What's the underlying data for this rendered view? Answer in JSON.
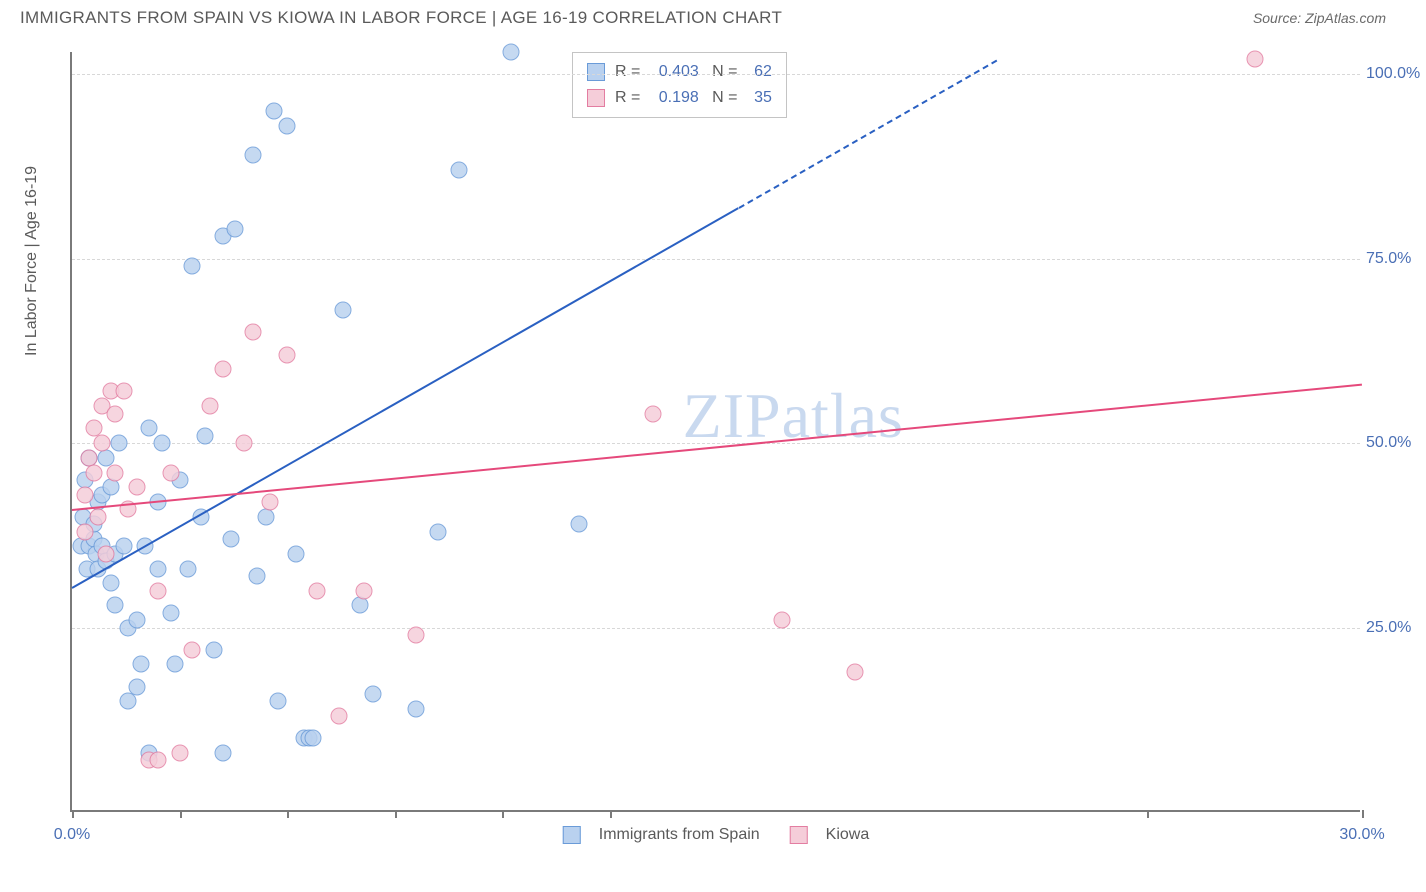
{
  "title": "IMMIGRANTS FROM SPAIN VS KIOWA IN LABOR FORCE | AGE 16-19 CORRELATION CHART",
  "source_label": "Source: ZipAtlas.com",
  "y_axis_label": "In Labor Force | Age 16-19",
  "watermark": {
    "zip": "ZIP",
    "atlas": "atlas"
  },
  "chart": {
    "type": "scatter",
    "xlim": [
      0,
      30
    ],
    "ylim": [
      0,
      103
    ],
    "x_ticks": [
      0,
      2.5,
      5,
      7.5,
      10,
      12.5,
      25,
      30
    ],
    "x_tick_labels": {
      "0": "0.0%",
      "30": "30.0%"
    },
    "y_gridlines": [
      25,
      50,
      75,
      100
    ],
    "y_tick_labels": {
      "25": "25.0%",
      "50": "50.0%",
      "75": "75.0%",
      "100": "100.0%"
    },
    "background_color": "#ffffff",
    "grid_color": "#d8d8d8",
    "axis_color": "#7a7a7a",
    "tick_label_color": "#4a6fb5"
  },
  "series": [
    {
      "name": "Immigrants from Spain",
      "color_fill": "#b9d1ef",
      "color_stroke": "#6a9bd8",
      "marker_radius": 8.5,
      "trend": {
        "color": "#2a60c2",
        "width": 2.5,
        "x0": 0,
        "y0": 30.5,
        "x1": 15.5,
        "y1": 82,
        "dash_x1": 21.5,
        "dash_y1": 102
      },
      "stats": {
        "R": "0.403",
        "N": "62"
      },
      "points": [
        [
          0.2,
          36
        ],
        [
          0.25,
          40
        ],
        [
          0.3,
          45
        ],
        [
          0.35,
          33
        ],
        [
          0.4,
          48
        ],
        [
          0.4,
          36
        ],
        [
          0.5,
          37
        ],
        [
          0.5,
          39
        ],
        [
          0.55,
          35
        ],
        [
          0.6,
          42
        ],
        [
          0.6,
          33
        ],
        [
          0.7,
          43
        ],
        [
          0.7,
          36
        ],
        [
          0.8,
          34
        ],
        [
          0.8,
          48
        ],
        [
          0.9,
          31
        ],
        [
          0.9,
          44
        ],
        [
          1.0,
          35
        ],
        [
          1.0,
          28
        ],
        [
          1.1,
          50
        ],
        [
          1.2,
          36
        ],
        [
          1.3,
          15
        ],
        [
          1.3,
          25
        ],
        [
          1.5,
          17
        ],
        [
          1.5,
          26
        ],
        [
          1.6,
          20
        ],
        [
          1.7,
          36
        ],
        [
          1.8,
          52
        ],
        [
          1.8,
          8
        ],
        [
          2.0,
          33
        ],
        [
          2.0,
          42
        ],
        [
          2.1,
          50
        ],
        [
          2.3,
          27
        ],
        [
          2.4,
          20
        ],
        [
          2.5,
          45
        ],
        [
          2.7,
          33
        ],
        [
          2.8,
          74
        ],
        [
          3.0,
          40
        ],
        [
          3.1,
          51
        ],
        [
          3.3,
          22
        ],
        [
          3.5,
          8
        ],
        [
          3.5,
          78
        ],
        [
          3.7,
          37
        ],
        [
          3.8,
          79
        ],
        [
          4.2,
          89
        ],
        [
          4.3,
          32
        ],
        [
          4.5,
          40
        ],
        [
          4.7,
          95
        ],
        [
          4.8,
          15
        ],
        [
          5.0,
          93
        ],
        [
          5.2,
          35
        ],
        [
          5.4,
          10
        ],
        [
          5.5,
          10
        ],
        [
          5.6,
          10
        ],
        [
          6.3,
          68
        ],
        [
          6.7,
          28
        ],
        [
          7.0,
          16
        ],
        [
          8.0,
          14
        ],
        [
          8.5,
          38
        ],
        [
          9.0,
          87
        ],
        [
          10.2,
          103
        ],
        [
          11.8,
          39
        ]
      ]
    },
    {
      "name": "Kiowa",
      "color_fill": "#f5cdd9",
      "color_stroke": "#e37da1",
      "marker_radius": 8.5,
      "trend": {
        "color": "#e5497b",
        "width": 2.5,
        "x0": 0,
        "y0": 41,
        "x1": 30,
        "y1": 58
      },
      "stats": {
        "R": "0.198",
        "N": "35"
      },
      "points": [
        [
          0.3,
          43
        ],
        [
          0.3,
          38
        ],
        [
          0.4,
          48
        ],
        [
          0.5,
          46
        ],
        [
          0.5,
          52
        ],
        [
          0.6,
          40
        ],
        [
          0.7,
          55
        ],
        [
          0.7,
          50
        ],
        [
          0.8,
          35
        ],
        [
          0.9,
          57
        ],
        [
          1.0,
          54
        ],
        [
          1.0,
          46
        ],
        [
          1.2,
          57
        ],
        [
          1.3,
          41
        ],
        [
          1.5,
          44
        ],
        [
          1.8,
          7
        ],
        [
          2.0,
          7
        ],
        [
          2.0,
          30
        ],
        [
          2.3,
          46
        ],
        [
          2.5,
          8
        ],
        [
          2.8,
          22
        ],
        [
          3.2,
          55
        ],
        [
          3.5,
          60
        ],
        [
          4.0,
          50
        ],
        [
          4.2,
          65
        ],
        [
          4.6,
          42
        ],
        [
          5.0,
          62
        ],
        [
          5.7,
          30
        ],
        [
          6.2,
          13
        ],
        [
          6.8,
          30
        ],
        [
          8.0,
          24
        ],
        [
          13.5,
          54
        ],
        [
          16.5,
          26
        ],
        [
          18.2,
          19
        ],
        [
          27.5,
          102
        ]
      ]
    }
  ],
  "stats_box": {
    "R_label": "R =",
    "N_label": "N ="
  },
  "legend": {
    "series1_label": "Immigrants from Spain",
    "series2_label": "Kiowa"
  }
}
